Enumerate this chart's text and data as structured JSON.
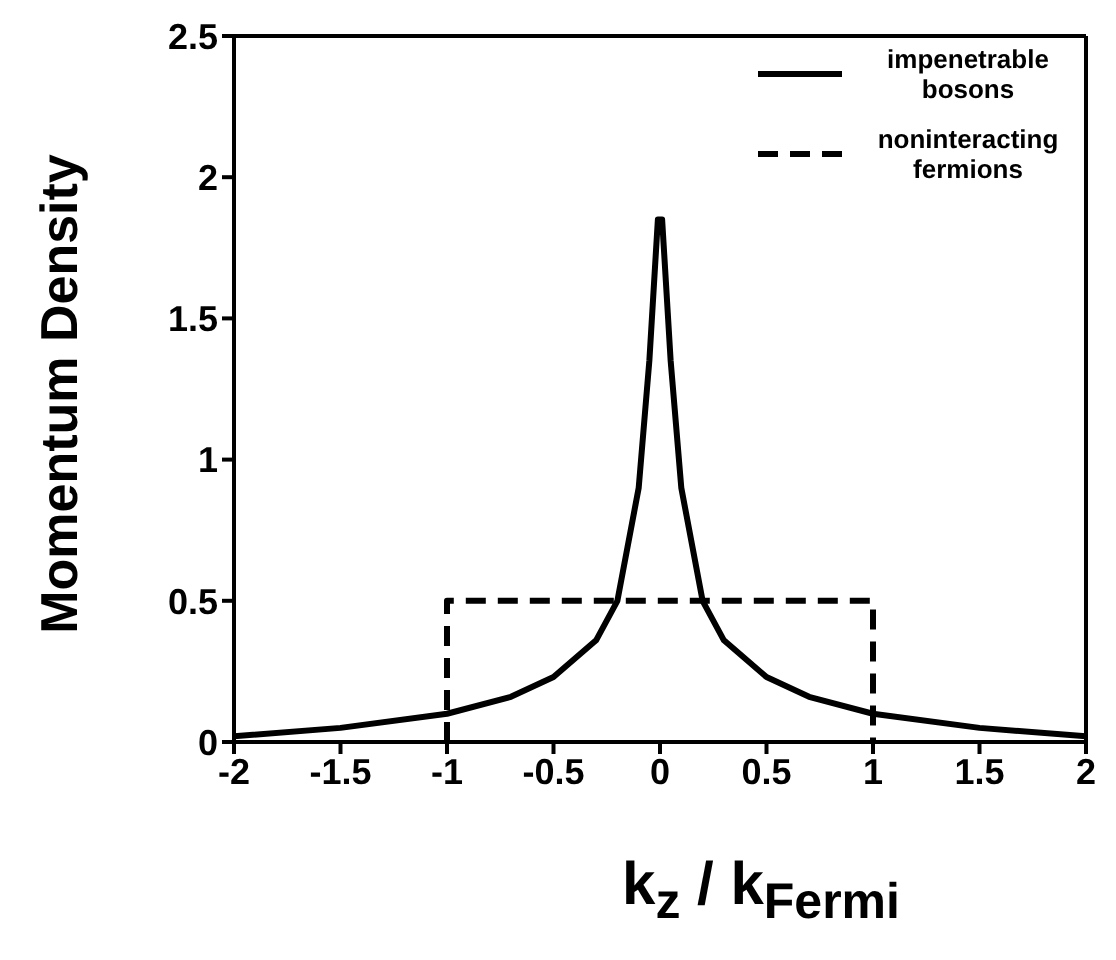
{
  "chart_data": {
    "type": "line",
    "xlabel": "k$_{z}$ / k$_{Fermi}$",
    "ylabel": "Momentum Density",
    "xlim": [
      -2,
      2
    ],
    "xticks": [
      -2,
      -1.5,
      -1,
      -0.5,
      0,
      0.5,
      1,
      1.5,
      2
    ],
    "ylim": [
      0,
      2.5
    ],
    "yticks": [
      0,
      0.5,
      1,
      1.5,
      2,
      2.5
    ],
    "legend": "top right",
    "marker": "none",
    "series": [
      {
        "name": "impenetrable bosons",
        "color": "#000000",
        "line_style": "solid",
        "x": [
          -2,
          -1.5,
          -1,
          -0.7,
          -0.5,
          -0.3,
          -0.2,
          -0.1,
          -0.05,
          -0.01,
          0.01,
          0.05,
          0.1,
          0.2,
          0.3,
          0.5,
          0.7,
          1,
          1.5,
          2
        ],
        "values": [
          0.02,
          0.05,
          0.1,
          0.16,
          0.23,
          0.36,
          0.5,
          0.9,
          1.35,
          1.85,
          1.85,
          1.35,
          0.9,
          0.5,
          0.36,
          0.23,
          0.16,
          0.1,
          0.05,
          0.02
        ]
      },
      {
        "name": "noninteracting fermions",
        "color": "#000000",
        "line_style": "dashed",
        "x": [
          -1,
          -1,
          1,
          1
        ],
        "values": [
          0,
          0.5,
          0.5,
          0
        ]
      }
    ]
  }
}
